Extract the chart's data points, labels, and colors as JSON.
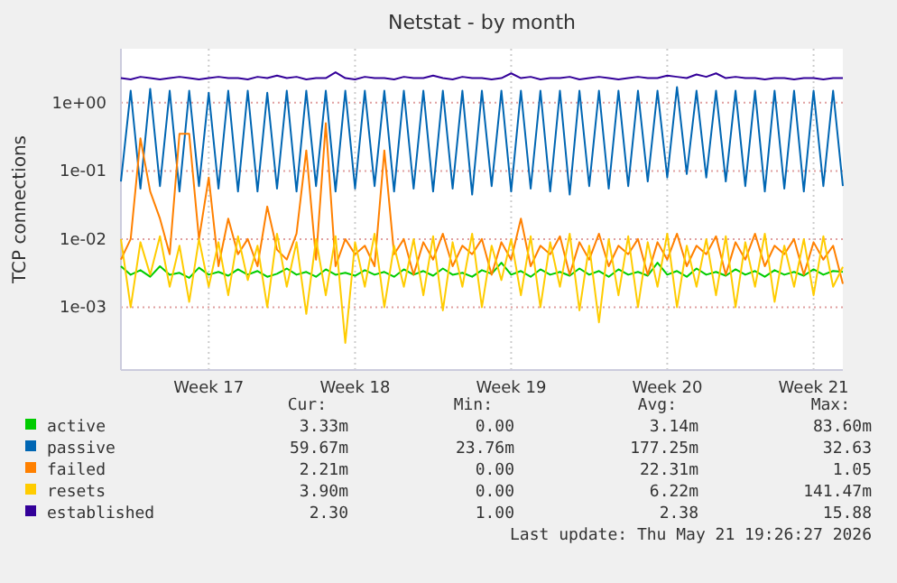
{
  "chart_data": {
    "type": "line",
    "title": "Netstat - by month",
    "ylabel": "TCP connections",
    "log": "y",
    "grid": true,
    "legend": "bottom",
    "marker": "none",
    "line_style": "solid",
    "categories": [
      null,
      null,
      null,
      null,
      null,
      null,
      null,
      null,
      null,
      "Week 17",
      null,
      null,
      null,
      null,
      null,
      null,
      null,
      null,
      null,
      null,
      null,
      null,
      null,
      null,
      "Week 18",
      null,
      null,
      null,
      null,
      null,
      null,
      null,
      null,
      null,
      null,
      null,
      null,
      null,
      null,
      null,
      "Week 19",
      null,
      null,
      null,
      null,
      null,
      null,
      null,
      null,
      null,
      null,
      null,
      null,
      null,
      null,
      null,
      "Week 20",
      null,
      null,
      null,
      null,
      null,
      null,
      null,
      null,
      null,
      null,
      null,
      null,
      null,
      null,
      "Week 21",
      null,
      null,
      null
    ],
    "ylim": [
      0.00012,
      6.2
    ],
    "yticks": [
      {
        "value": 0.001,
        "label": "1e-03"
      },
      {
        "value": 0.01,
        "label": "1e-02"
      },
      {
        "value": 0.1,
        "label": "1e-01"
      },
      {
        "value": 1,
        "label": "1e+00"
      }
    ],
    "series": [
      {
        "name": "active",
        "color": "#00cc00",
        "values": [
          0.004,
          0.003,
          0.0035,
          0.0028,
          0.004,
          0.003,
          0.0032,
          0.0027,
          0.0038,
          0.003,
          0.0033,
          0.0029,
          0.0036,
          0.003,
          0.0034,
          0.0028,
          0.0031,
          0.0037,
          0.003,
          0.0033,
          0.0028,
          0.0036,
          0.003,
          0.0032,
          0.0029,
          0.0035,
          0.003,
          0.0033,
          0.0028,
          0.0036,
          0.003,
          0.0034,
          0.0029,
          0.0037,
          0.003,
          0.0032,
          0.0028,
          0.0035,
          0.0031,
          0.0045,
          0.003,
          0.0034,
          0.0028,
          0.0036,
          0.003,
          0.0033,
          0.0029,
          0.0037,
          0.003,
          0.0034,
          0.0028,
          0.0036,
          0.003,
          0.0033,
          0.0029,
          0.0045,
          0.003,
          0.0034,
          0.0028,
          0.0037,
          0.003,
          0.0033,
          0.0029,
          0.0036,
          0.003,
          0.0034,
          0.0028,
          0.0035,
          0.003,
          0.0033,
          0.0029,
          0.0036,
          0.003,
          0.0034,
          0.0033
        ]
      },
      {
        "name": "passive",
        "color": "#0066b3",
        "values": [
          0.07,
          1.5,
          0.055,
          1.6,
          0.06,
          1.5,
          0.05,
          1.5,
          0.06,
          1.4,
          0.055,
          1.5,
          0.05,
          1.5,
          0.05,
          1.4,
          0.055,
          1.5,
          0.05,
          1.5,
          0.06,
          1.5,
          0.05,
          1.5,
          0.055,
          1.5,
          0.06,
          1.5,
          0.05,
          1.5,
          0.055,
          1.5,
          0.05,
          1.5,
          0.055,
          1.5,
          0.045,
          1.5,
          0.06,
          1.5,
          0.05,
          1.5,
          0.055,
          1.5,
          0.05,
          1.5,
          0.045,
          1.5,
          0.06,
          1.5,
          0.055,
          1.5,
          0.06,
          1.5,
          0.07,
          1.5,
          0.08,
          1.7,
          0.09,
          1.5,
          0.08,
          1.5,
          0.07,
          1.5,
          0.06,
          1.5,
          0.05,
          1.5,
          0.055,
          1.5,
          0.05,
          1.5,
          0.06,
          1.5,
          0.06
        ]
      },
      {
        "name": "failed",
        "color": "#ff8000",
        "values": [
          0.005,
          0.01,
          0.3,
          0.05,
          0.02,
          0.006,
          0.35,
          0.35,
          0.01,
          0.08,
          0.004,
          0.02,
          0.006,
          0.01,
          0.004,
          0.03,
          0.007,
          0.005,
          0.012,
          0.2,
          0.005,
          0.5,
          0.004,
          0.01,
          0.006,
          0.008,
          0.004,
          0.2,
          0.006,
          0.01,
          0.003,
          0.009,
          0.005,
          0.012,
          0.004,
          0.008,
          0.006,
          0.01,
          0.003,
          0.009,
          0.005,
          0.02,
          0.004,
          0.008,
          0.006,
          0.011,
          0.003,
          0.009,
          0.005,
          0.012,
          0.004,
          0.008,
          0.006,
          0.01,
          0.003,
          0.009,
          0.005,
          0.012,
          0.004,
          0.008,
          0.006,
          0.011,
          0.003,
          0.009,
          0.005,
          0.012,
          0.004,
          0.008,
          0.006,
          0.01,
          0.003,
          0.009,
          0.005,
          0.008,
          0.0022
        ]
      },
      {
        "name": "resets",
        "color": "#ffcc00",
        "values": [
          0.01,
          0.001,
          0.009,
          0.003,
          0.011,
          0.002,
          0.008,
          0.0012,
          0.01,
          0.002,
          0.009,
          0.0015,
          0.011,
          0.0025,
          0.008,
          0.001,
          0.012,
          0.002,
          0.009,
          0.0008,
          0.01,
          0.0015,
          0.011,
          0.0003,
          0.009,
          0.002,
          0.012,
          0.001,
          0.008,
          0.002,
          0.01,
          0.0015,
          0.011,
          0.0009,
          0.009,
          0.002,
          0.012,
          0.001,
          0.008,
          0.0025,
          0.01,
          0.0015,
          0.011,
          0.001,
          0.009,
          0.002,
          0.012,
          0.0009,
          0.008,
          0.0006,
          0.01,
          0.0015,
          0.011,
          0.001,
          0.009,
          0.002,
          0.012,
          0.001,
          0.008,
          0.002,
          0.01,
          0.0015,
          0.011,
          0.001,
          0.009,
          0.002,
          0.012,
          0.0012,
          0.008,
          0.002,
          0.01,
          0.0015,
          0.011,
          0.002,
          0.0039
        ]
      },
      {
        "name": "established",
        "color": "#330099",
        "values": [
          2.3,
          2.2,
          2.4,
          2.3,
          2.2,
          2.3,
          2.4,
          2.3,
          2.2,
          2.3,
          2.4,
          2.3,
          2.3,
          2.2,
          2.4,
          2.3,
          2.5,
          2.3,
          2.4,
          2.2,
          2.3,
          2.3,
          2.8,
          2.3,
          2.2,
          2.4,
          2.3,
          2.3,
          2.2,
          2.4,
          2.3,
          2.3,
          2.5,
          2.3,
          2.2,
          2.4,
          2.3,
          2.3,
          2.2,
          2.3,
          2.7,
          2.3,
          2.4,
          2.2,
          2.3,
          2.3,
          2.4,
          2.2,
          2.3,
          2.4,
          2.3,
          2.2,
          2.3,
          2.4,
          2.3,
          2.3,
          2.5,
          2.4,
          2.3,
          2.6,
          2.4,
          2.7,
          2.3,
          2.4,
          2.3,
          2.3,
          2.2,
          2.3,
          2.3,
          2.2,
          2.3,
          2.3,
          2.2,
          2.3,
          2.3
        ]
      }
    ],
    "annotations": [
      "Cur:",
      "Min:",
      "Avg:",
      "Max:",
      "3.33m",
      "0.00",
      "3.14m",
      "83.60m",
      "59.67m",
      "23.76m",
      "177.25m",
      "32.63",
      "2.21m",
      "0.00",
      "22.31m",
      "1.05",
      "3.90m",
      "0.00",
      "6.22m",
      "141.47m",
      "2.30",
      "1.00",
      "2.38",
      "15.88",
      "Last update: Thu May 21 19:26:27 2026"
    ]
  }
}
